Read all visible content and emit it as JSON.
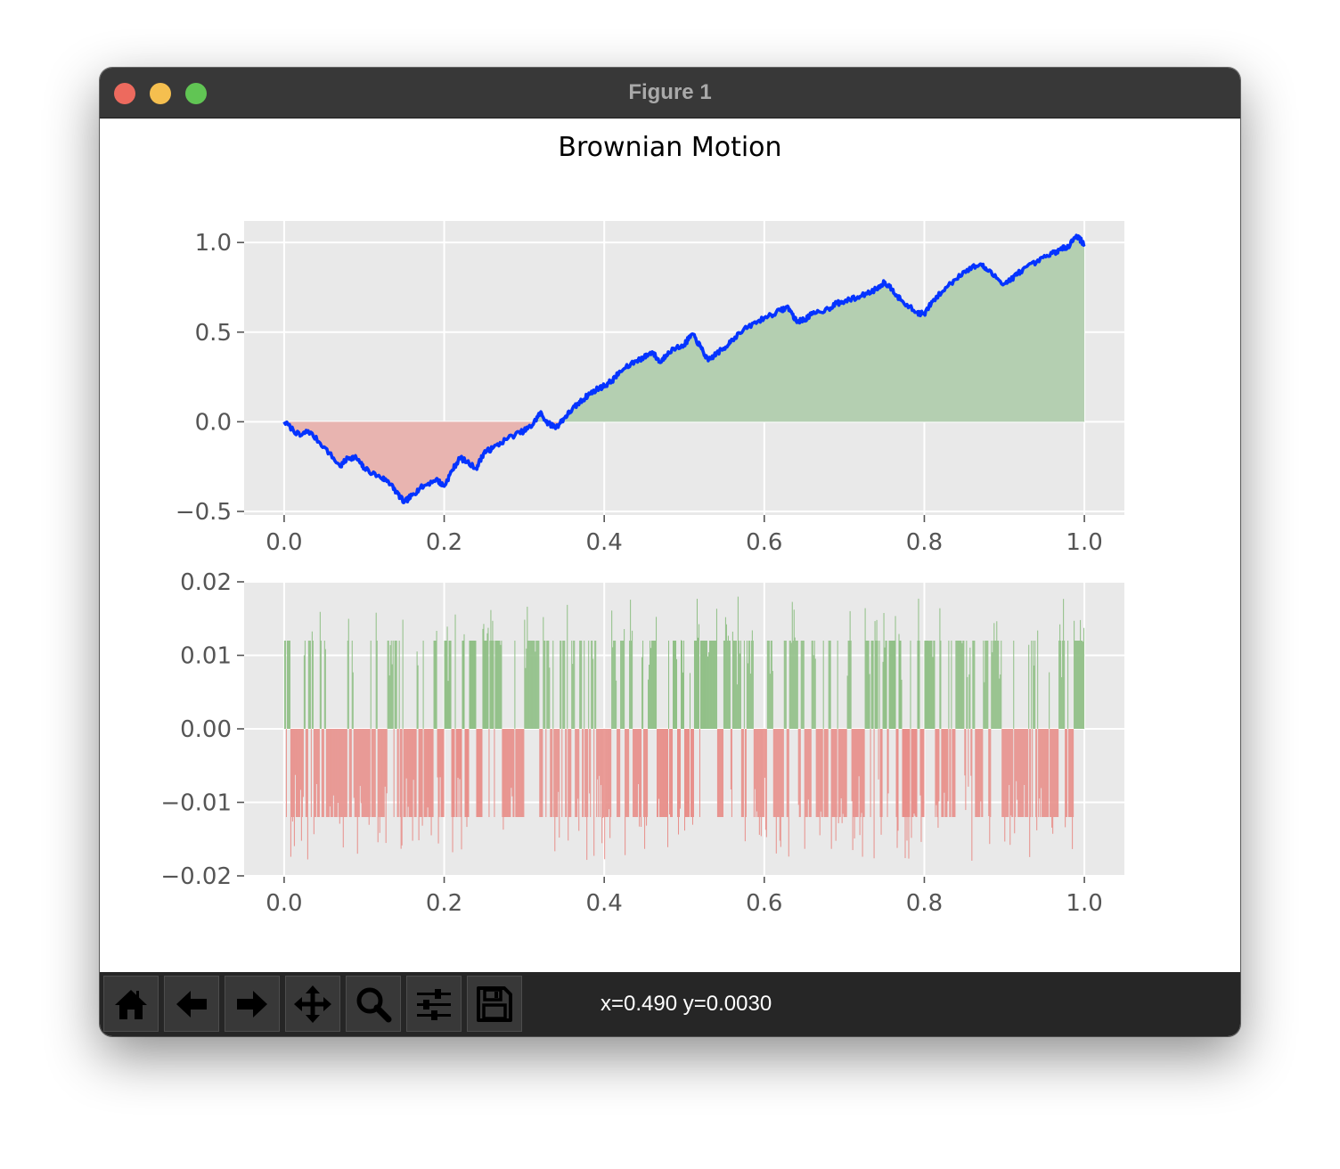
{
  "window": {
    "title": "Figure 1"
  },
  "figure": {
    "suptitle": "Brownian Motion",
    "colors": {
      "line": "#0433ff",
      "fill_pos": "#b4cfb1",
      "fill_neg": "#e8b4b0",
      "bar_pos": "#8fbf85",
      "bar_neg": "#e88f8a",
      "axes_bg": "#e9e9e9",
      "grid": "#ffffff",
      "tick_text": "#555555"
    }
  },
  "chart_data": [
    {
      "type": "line",
      "description_fill": "area filled green above 0, red below 0",
      "title": "",
      "xlabel": "",
      "ylabel": "",
      "xlim": [
        -0.05,
        1.05
      ],
      "ylim": [
        -0.52,
        1.12
      ],
      "xticks": [
        "0.0",
        "0.2",
        "0.4",
        "0.6",
        "0.8",
        "1.0"
      ],
      "xtick_values": [
        0.0,
        0.2,
        0.4,
        0.6,
        0.8,
        1.0
      ],
      "yticks": [
        "−0.5",
        "0.0",
        "0.5",
        "1.0"
      ],
      "ytick_values": [
        -0.5,
        0.0,
        0.5,
        1.0
      ],
      "grid": true,
      "series": [
        {
          "x": [
            0.0,
            0.02,
            0.03,
            0.05,
            0.07,
            0.08,
            0.09,
            0.1,
            0.12,
            0.13,
            0.14,
            0.15,
            0.16,
            0.17,
            0.19,
            0.2,
            0.21,
            0.22,
            0.24,
            0.25,
            0.26,
            0.28,
            0.3,
            0.31,
            0.32,
            0.33,
            0.34,
            0.35,
            0.36,
            0.37,
            0.38,
            0.39,
            0.4,
            0.41,
            0.42,
            0.44,
            0.45,
            0.46,
            0.47,
            0.48,
            0.5,
            0.51,
            0.52,
            0.53,
            0.54,
            0.55,
            0.56,
            0.58,
            0.6,
            0.62,
            0.63,
            0.64,
            0.65,
            0.66,
            0.68,
            0.69,
            0.7,
            0.72,
            0.74,
            0.75,
            0.76,
            0.77,
            0.79,
            0.8,
            0.81,
            0.83,
            0.85,
            0.87,
            0.88,
            0.9,
            0.91,
            0.92,
            0.94,
            0.96,
            0.97,
            0.98,
            0.99,
            1.0
          ],
          "y": [
            0.0,
            -0.08,
            -0.05,
            -0.14,
            -0.25,
            -0.2,
            -0.2,
            -0.26,
            -0.31,
            -0.33,
            -0.39,
            -0.45,
            -0.41,
            -0.37,
            -0.32,
            -0.36,
            -0.27,
            -0.2,
            -0.26,
            -0.17,
            -0.15,
            -0.09,
            -0.05,
            -0.02,
            0.05,
            -0.01,
            -0.03,
            0.02,
            0.07,
            0.11,
            0.15,
            0.18,
            0.2,
            0.23,
            0.28,
            0.34,
            0.36,
            0.39,
            0.33,
            0.39,
            0.43,
            0.49,
            0.42,
            0.34,
            0.38,
            0.41,
            0.46,
            0.53,
            0.58,
            0.62,
            0.64,
            0.56,
            0.57,
            0.6,
            0.63,
            0.66,
            0.67,
            0.7,
            0.74,
            0.78,
            0.74,
            0.68,
            0.61,
            0.6,
            0.67,
            0.76,
            0.84,
            0.88,
            0.84,
            0.77,
            0.8,
            0.84,
            0.89,
            0.94,
            0.96,
            0.98,
            1.04,
            0.99
          ]
        }
      ]
    },
    {
      "type": "bar",
      "description": "increments of the walk (about 900 thin bars, +/-0.012 each, green when positive, red when negative)",
      "title": "",
      "xlabel": "",
      "ylabel": "",
      "xlim": [
        -0.05,
        1.05
      ],
      "ylim": [
        -0.02,
        0.02
      ],
      "xticks": [
        "0.0",
        "0.2",
        "0.4",
        "0.6",
        "0.8",
        "1.0"
      ],
      "xtick_values": [
        0.0,
        0.2,
        0.4,
        0.6,
        0.8,
        1.0
      ],
      "yticks": [
        "−0.02",
        "−0.01",
        "0.00",
        "0.01",
        "0.02"
      ],
      "ytick_values": [
        -0.02,
        -0.01,
        0.0,
        0.01,
        0.02
      ],
      "grid": true,
      "bar_count": 900,
      "typical_magnitude": 0.012
    }
  ],
  "toolbar": {
    "buttons": [
      {
        "name": "home-button",
        "icon": "home-icon"
      },
      {
        "name": "back-button",
        "icon": "arrow-left-icon"
      },
      {
        "name": "forward-button",
        "icon": "arrow-right-icon"
      },
      {
        "name": "pan-button",
        "icon": "move-icon"
      },
      {
        "name": "zoom-button",
        "icon": "magnifier-icon"
      },
      {
        "name": "configure-subplots-button",
        "icon": "sliders-icon"
      },
      {
        "name": "save-button",
        "icon": "floppy-disk-icon"
      }
    ],
    "coords": "x=0.490 y=0.0030"
  }
}
